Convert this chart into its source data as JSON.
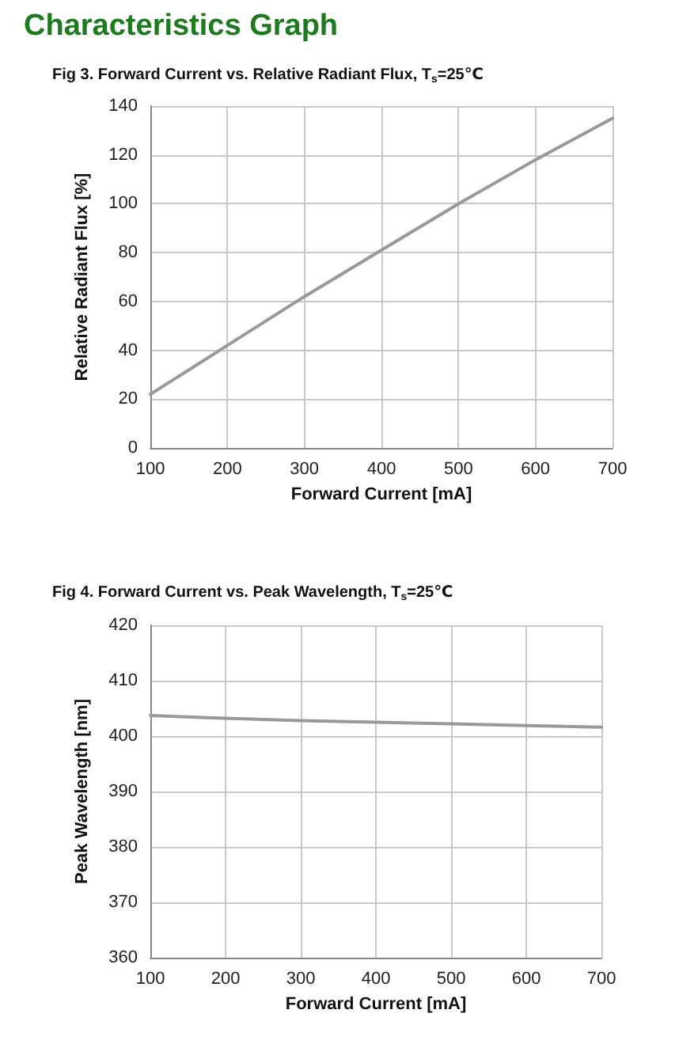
{
  "chart_data": [
    {
      "type": "line",
      "title": "Characteristics Graph",
      "subtitle": "Fig 3. Forward Current vs. Relative Radiant Flux, T$_{s}$=25℃",
      "xlabel": "Forward Current [mA]",
      "ylabel": "Relative Radiant Flux [%]",
      "x": [
        100,
        200,
        300,
        400,
        500,
        600,
        700
      ],
      "series": [
        {
          "color": "#999999",
          "values": [
            22,
            42,
            62,
            81,
            100,
            118,
            135
          ]
        }
      ],
      "xlim": [
        100,
        700
      ],
      "xticks": [
        100,
        200,
        300,
        400,
        500,
        600,
        700
      ],
      "ylim": [
        0,
        140
      ],
      "yticks": [
        0,
        20,
        40,
        60,
        80,
        100,
        120,
        140
      ],
      "grid": true,
      "marker": "none",
      "line_style": "solid"
    },
    {
      "type": "line",
      "subtitle": "Fig 4. Forward Current vs. Peak Wavelength, T$_{s}$=25℃",
      "xlabel": "Forward Current [mA]",
      "ylabel": "Peak Wavelength [nm]",
      "x": [
        100,
        200,
        300,
        400,
        500,
        600,
        700
      ],
      "series": [
        {
          "color": "#999999",
          "values": [
            403.7,
            403.2,
            402.8,
            402.5,
            402.2,
            401.9,
            401.6
          ]
        }
      ],
      "xlim": [
        100,
        700
      ],
      "xticks": [
        100,
        200,
        300,
        400,
        500,
        600,
        700
      ],
      "ylim": [
        360,
        420
      ],
      "yticks": [
        360,
        370,
        380,
        390,
        400,
        410,
        420
      ],
      "grid": true,
      "marker": "none",
      "line_style": "solid"
    }
  ]
}
